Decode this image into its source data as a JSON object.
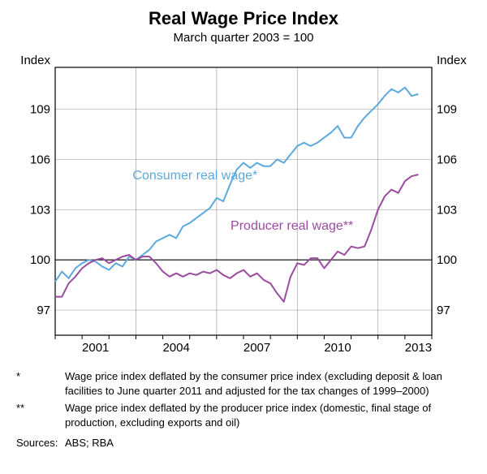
{
  "title": "Real Wage Price Index",
  "subtitle": "March quarter 2003 = 100",
  "y_axis_label_left": "Index",
  "y_axis_label_right": "Index",
  "chart": {
    "type": "line",
    "xlim": [
      2000,
      2014
    ],
    "ylim": [
      95.5,
      111.5
    ],
    "yticks": [
      97,
      100,
      103,
      106,
      109
    ],
    "xticks": [
      2001,
      2004,
      2007,
      2010,
      2013
    ],
    "background_color": "#ffffff",
    "grid_color": "#000000",
    "grid_opacity": 0.35,
    "reference_line_y": 100,
    "reference_line_color": "#000000",
    "label_fontsize": 15,
    "series": [
      {
        "name": "Consumer real wage*",
        "color": "#5ca9dd",
        "line_width": 2,
        "label_x": 2005.2,
        "label_y": 104.8,
        "data": [
          [
            2000.0,
            98.7
          ],
          [
            2000.25,
            99.3
          ],
          [
            2000.5,
            98.9
          ],
          [
            2000.75,
            99.5
          ],
          [
            2001.0,
            99.8
          ],
          [
            2001.25,
            100.0
          ],
          [
            2001.5,
            99.9
          ],
          [
            2001.75,
            99.6
          ],
          [
            2002.0,
            99.4
          ],
          [
            2002.25,
            99.8
          ],
          [
            2002.5,
            99.6
          ],
          [
            2002.75,
            100.2
          ],
          [
            2003.0,
            100.0
          ],
          [
            2003.25,
            100.3
          ],
          [
            2003.5,
            100.6
          ],
          [
            2003.75,
            101.1
          ],
          [
            2004.0,
            101.3
          ],
          [
            2004.25,
            101.5
          ],
          [
            2004.5,
            101.3
          ],
          [
            2004.75,
            102.0
          ],
          [
            2005.0,
            102.2
          ],
          [
            2005.25,
            102.5
          ],
          [
            2005.5,
            102.8
          ],
          [
            2005.75,
            103.1
          ],
          [
            2006.0,
            103.7
          ],
          [
            2006.25,
            103.5
          ],
          [
            2006.5,
            104.5
          ],
          [
            2006.75,
            105.4
          ],
          [
            2007.0,
            105.8
          ],
          [
            2007.25,
            105.5
          ],
          [
            2007.5,
            105.8
          ],
          [
            2007.75,
            105.6
          ],
          [
            2008.0,
            105.6
          ],
          [
            2008.25,
            106.0
          ],
          [
            2008.5,
            105.8
          ],
          [
            2008.75,
            106.3
          ],
          [
            2009.0,
            106.8
          ],
          [
            2009.25,
            107.0
          ],
          [
            2009.5,
            106.8
          ],
          [
            2009.75,
            107.0
          ],
          [
            2010.0,
            107.3
          ],
          [
            2010.25,
            107.6
          ],
          [
            2010.5,
            108.0
          ],
          [
            2010.75,
            107.3
          ],
          [
            2011.0,
            107.3
          ],
          [
            2011.25,
            108.0
          ],
          [
            2011.5,
            108.5
          ],
          [
            2011.75,
            108.9
          ],
          [
            2012.0,
            109.3
          ],
          [
            2012.25,
            109.8
          ],
          [
            2012.5,
            110.2
          ],
          [
            2012.75,
            110.0
          ],
          [
            2013.0,
            110.3
          ],
          [
            2013.25,
            109.8
          ],
          [
            2013.5,
            109.9
          ]
        ]
      },
      {
        "name": "Producer real wage**",
        "color": "#9b4ba0",
        "line_width": 2,
        "label_x": 2008.8,
        "label_y": 101.8,
        "data": [
          [
            2000.0,
            97.8
          ],
          [
            2000.25,
            97.8
          ],
          [
            2000.5,
            98.6
          ],
          [
            2000.75,
            99.0
          ],
          [
            2001.0,
            99.5
          ],
          [
            2001.25,
            99.8
          ],
          [
            2001.5,
            100.0
          ],
          [
            2001.75,
            100.1
          ],
          [
            2002.0,
            99.8
          ],
          [
            2002.25,
            100.0
          ],
          [
            2002.5,
            100.2
          ],
          [
            2002.75,
            100.3
          ],
          [
            2003.0,
            100.0
          ],
          [
            2003.25,
            100.2
          ],
          [
            2003.5,
            100.2
          ],
          [
            2003.75,
            99.8
          ],
          [
            2004.0,
            99.3
          ],
          [
            2004.25,
            99.0
          ],
          [
            2004.5,
            99.2
          ],
          [
            2004.75,
            99.0
          ],
          [
            2005.0,
            99.2
          ],
          [
            2005.25,
            99.1
          ],
          [
            2005.5,
            99.3
          ],
          [
            2005.75,
            99.2
          ],
          [
            2006.0,
            99.4
          ],
          [
            2006.25,
            99.1
          ],
          [
            2006.5,
            98.9
          ],
          [
            2006.75,
            99.2
          ],
          [
            2007.0,
            99.4
          ],
          [
            2007.25,
            99.0
          ],
          [
            2007.5,
            99.2
          ],
          [
            2007.75,
            98.8
          ],
          [
            2008.0,
            98.6
          ],
          [
            2008.25,
            98.0
          ],
          [
            2008.5,
            97.5
          ],
          [
            2008.75,
            99.0
          ],
          [
            2009.0,
            99.8
          ],
          [
            2009.25,
            99.7
          ],
          [
            2009.5,
            100.1
          ],
          [
            2009.75,
            100.1
          ],
          [
            2010.0,
            99.5
          ],
          [
            2010.25,
            100.0
          ],
          [
            2010.5,
            100.5
          ],
          [
            2010.75,
            100.3
          ],
          [
            2011.0,
            100.8
          ],
          [
            2011.25,
            100.7
          ],
          [
            2011.5,
            100.8
          ],
          [
            2011.75,
            101.8
          ],
          [
            2012.0,
            103.0
          ],
          [
            2012.25,
            103.8
          ],
          [
            2012.5,
            104.2
          ],
          [
            2012.75,
            104.0
          ],
          [
            2013.0,
            104.7
          ],
          [
            2013.25,
            105.0
          ],
          [
            2013.5,
            105.1
          ]
        ]
      }
    ]
  },
  "footnotes": [
    {
      "marker": "*",
      "text": "Wage price index deflated by the consumer price index (excluding deposit & loan facilities to June quarter 2011 and adjusted for the tax changes of 1999–2000)"
    },
    {
      "marker": "**",
      "text": "Wage price index deflated by the producer price index (domestic, final stage of production, excluding exports and oil)"
    }
  ],
  "sources_label": "Sources:",
  "sources_text": "ABS; RBA"
}
